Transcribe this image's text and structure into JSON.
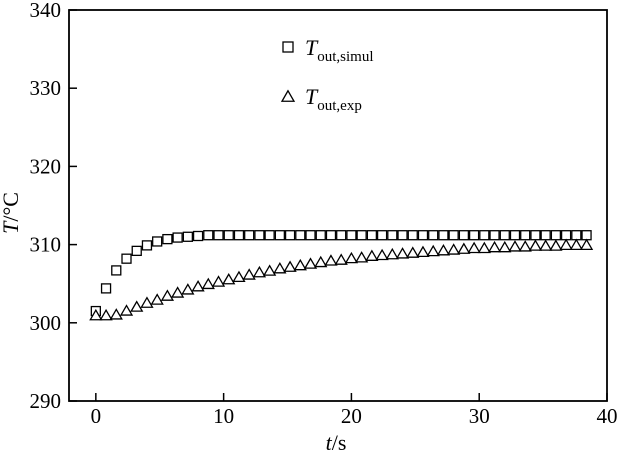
{
  "page": {
    "background": "#ffffff",
    "foreground": "#000000"
  },
  "chart_data": {
    "type": "scatter",
    "title": "",
    "xlabel": "t/s",
    "xlabel_parts": {
      "italic": "t",
      "rest": "/s"
    },
    "ylabel": "T/°C",
    "ylabel_parts": {
      "italic": "T",
      "rest": "/°C"
    },
    "xlim": [
      -2.1,
      40
    ],
    "ylim": [
      290,
      340
    ],
    "xticks": [
      0,
      10,
      20,
      30,
      40
    ],
    "yticks": [
      290,
      300,
      310,
      320,
      330,
      340
    ],
    "grid": false,
    "frame": true,
    "legend_position": "upper-center-inside",
    "marker_stroke": "#000000",
    "marker_fill": "#ffffff",
    "x": [
      0,
      0.8,
      1.6,
      2.4,
      3.2,
      4,
      4.8,
      5.6,
      6.4,
      7.2,
      8,
      8.8,
      9.6,
      10.4,
      11.2,
      12,
      12.8,
      13.6,
      14.4,
      15.2,
      16,
      16.8,
      17.6,
      18.4,
      19.2,
      20,
      20.8,
      21.6,
      22.4,
      23.2,
      24,
      24.8,
      25.6,
      26.4,
      27.2,
      28,
      28.8,
      29.6,
      30.4,
      31.2,
      32,
      32.8,
      33.6,
      34.4,
      35.2,
      36,
      36.8,
      37.6,
      38.4
    ],
    "series": [
      {
        "name": "T_out,simul",
        "marker": "square",
        "legend_base": "T",
        "legend_sub": "out,simul",
        "y": [
          301.5,
          304.4,
          306.7,
          308.2,
          309.2,
          309.9,
          310.4,
          310.7,
          310.9,
          311.0,
          311.1,
          311.2,
          311.2,
          311.2,
          311.2,
          311.2,
          311.2,
          311.2,
          311.2,
          311.2,
          311.2,
          311.2,
          311.2,
          311.2,
          311.2,
          311.2,
          311.2,
          311.2,
          311.2,
          311.2,
          311.2,
          311.2,
          311.2,
          311.2,
          311.2,
          311.2,
          311.2,
          311.2,
          311.2,
          311.2,
          311.2,
          311.2,
          311.2,
          311.2,
          311.2,
          311.2,
          311.2,
          311.2,
          311.2
        ]
      },
      {
        "name": "T_out,exp",
        "marker": "triangle",
        "legend_base": "T",
        "legend_sub": "out,exp",
        "y": [
          301.0,
          301.0,
          301.1,
          301.6,
          302.1,
          302.6,
          303.0,
          303.5,
          303.9,
          304.3,
          304.7,
          305.0,
          305.3,
          305.6,
          305.9,
          306.2,
          306.5,
          306.7,
          307.0,
          307.2,
          307.4,
          307.6,
          307.8,
          308.0,
          308.1,
          308.3,
          308.4,
          308.6,
          308.7,
          308.8,
          308.9,
          309.0,
          309.1,
          309.2,
          309.3,
          309.4,
          309.5,
          309.6,
          309.6,
          309.7,
          309.7,
          309.8,
          309.8,
          309.9,
          309.9,
          309.9,
          310.0,
          310.0,
          310.0
        ]
      }
    ]
  }
}
